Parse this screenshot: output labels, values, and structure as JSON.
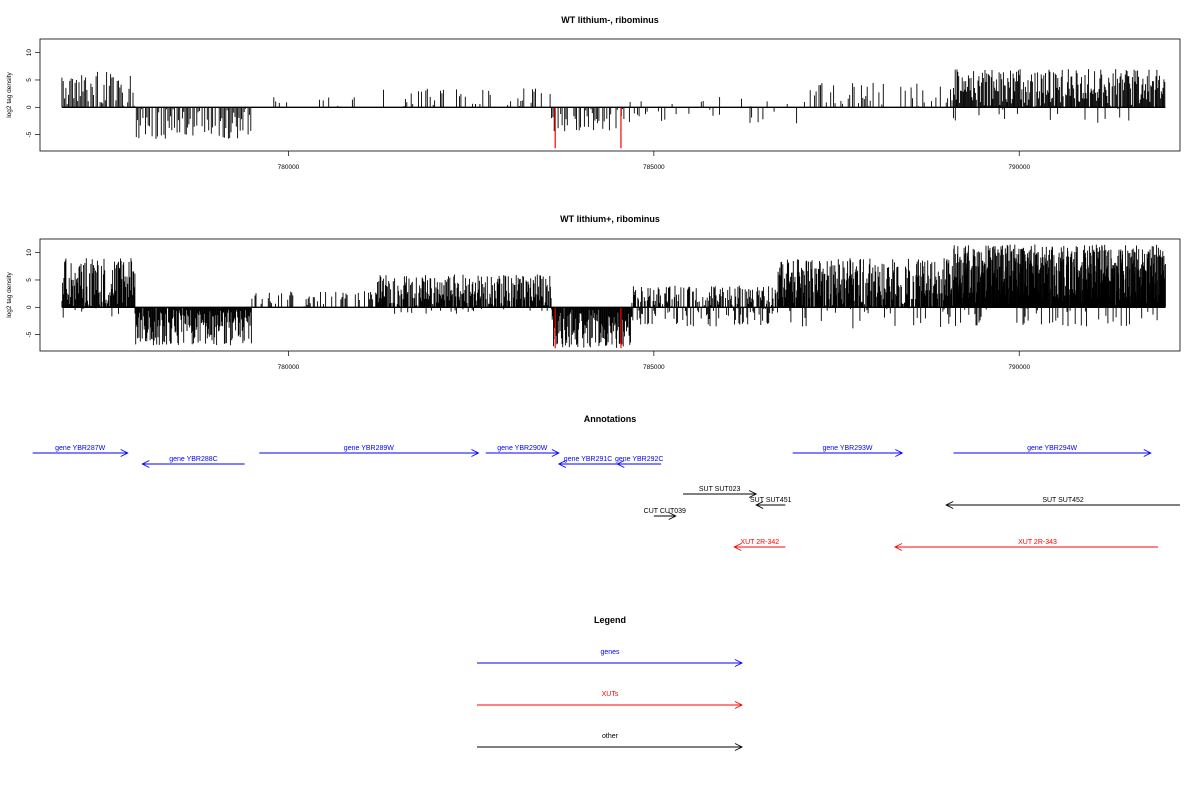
{
  "colors": {
    "black": "#000000",
    "blue": "#0000ff",
    "red": "#ff0000"
  },
  "chart_data": [
    {
      "type": "bar",
      "title": "WT lithium-, ribominus",
      "ylabel": "log2 tag density",
      "xlim": [
        776600,
        792200
      ],
      "ylim": [
        -8,
        12.5
      ],
      "xticks": [
        780000,
        785000,
        790000
      ],
      "yticks": [
        -5,
        0,
        5,
        10
      ],
      "grid": false,
      "tracks": [
        {
          "from": 776900,
          "to": 777900,
          "sign": 1,
          "density": 0.8,
          "max": 6.5,
          "step": 18
        },
        {
          "from": 777900,
          "to": 779500,
          "sign": -1,
          "density": 0.85,
          "max": 5.8,
          "step": 18
        },
        {
          "from": 779500,
          "to": 781300,
          "sign": 1,
          "density": 0.1,
          "max": 2.0,
          "step": 25
        },
        {
          "from": 781300,
          "to": 783600,
          "sign": 1,
          "density": 0.35,
          "max": 3.5,
          "step": 20
        },
        {
          "from": 783600,
          "to": 784600,
          "sign": -1,
          "density": 0.6,
          "max": 4.5,
          "step": 18
        },
        {
          "from": 784600,
          "to": 787000,
          "sign": -1,
          "density": 0.2,
          "max": 3.0,
          "step": 22
        },
        {
          "from": 784600,
          "to": 787000,
          "sign": 1,
          "density": 0.12,
          "max": 2.0,
          "step": 25
        },
        {
          "from": 787000,
          "to": 789100,
          "sign": 1,
          "density": 0.35,
          "max": 4.5,
          "step": 20
        },
        {
          "from": 789100,
          "to": 792000,
          "sign": 1,
          "density": 0.95,
          "max": 7.0,
          "step": 12
        },
        {
          "from": 789100,
          "to": 792000,
          "sign": -1,
          "density": 0.12,
          "max": 3.0,
          "step": 25
        }
      ],
      "red_marks": [
        {
          "x": 783650,
          "y": -7.5
        },
        {
          "x": 784550,
          "y": -7.5
        }
      ]
    },
    {
      "type": "bar",
      "title": "WT lithium+, ribominus",
      "ylabel": "log2 tag density",
      "xlim": [
        776600,
        792200
      ],
      "ylim": [
        -8,
        12.5
      ],
      "xticks": [
        780000,
        785000,
        790000
      ],
      "yticks": [
        -5,
        0,
        5,
        10
      ],
      "grid": false,
      "tracks": [
        {
          "from": 776900,
          "to": 777900,
          "sign": 1,
          "density": 1.0,
          "max": 9.0,
          "step": 9
        },
        {
          "from": 776900,
          "to": 777900,
          "sign": -1,
          "density": 0.15,
          "max": 2.0,
          "step": 18
        },
        {
          "from": 777900,
          "to": 779500,
          "sign": -1,
          "density": 0.95,
          "max": 7.0,
          "step": 9
        },
        {
          "from": 779500,
          "to": 781200,
          "sign": 1,
          "density": 0.35,
          "max": 3.0,
          "step": 14
        },
        {
          "from": 781200,
          "to": 783600,
          "sign": 1,
          "density": 0.85,
          "max": 6.0,
          "step": 9
        },
        {
          "from": 781200,
          "to": 783600,
          "sign": -1,
          "density": 0.12,
          "max": 1.5,
          "step": 18
        },
        {
          "from": 783600,
          "to": 784700,
          "sign": -1,
          "density": 1.0,
          "max": 7.5,
          "step": 9
        },
        {
          "from": 784700,
          "to": 786700,
          "sign": 1,
          "density": 0.6,
          "max": 4.0,
          "step": 10
        },
        {
          "from": 784700,
          "to": 786700,
          "sign": -1,
          "density": 0.4,
          "max": 3.5,
          "step": 12
        },
        {
          "from": 786700,
          "to": 789100,
          "sign": 1,
          "density": 0.9,
          "max": 9.0,
          "step": 8
        },
        {
          "from": 786700,
          "to": 789100,
          "sign": -1,
          "density": 0.2,
          "max": 4.0,
          "step": 16
        },
        {
          "from": 789100,
          "to": 792000,
          "sign": 1,
          "density": 1.0,
          "max": 11.5,
          "step": 5
        },
        {
          "from": 789100,
          "to": 792000,
          "sign": -1,
          "density": 0.25,
          "max": 3.5,
          "step": 14
        }
      ],
      "red_marks": [
        {
          "x": 783650,
          "y": -7.5
        },
        {
          "x": 784550,
          "y": -7.5
        }
      ]
    }
  ],
  "annotations": {
    "title": "Annotations",
    "features": [
      {
        "label": "gene YBR287W",
        "type": "gene",
        "start": 776500,
        "end": 777800,
        "strand": "+",
        "row": 0
      },
      {
        "label": "gene YBR288C",
        "type": "gene",
        "start": 778000,
        "end": 779400,
        "strand": "-",
        "row": 1
      },
      {
        "label": "gene YBR289W",
        "type": "gene",
        "start": 779600,
        "end": 782600,
        "strand": "+",
        "row": 0
      },
      {
        "label": "gene YBR290W",
        "type": "gene",
        "start": 782700,
        "end": 783700,
        "strand": "+",
        "row": 0
      },
      {
        "label": "gene YBR291C",
        "type": "gene",
        "start": 783700,
        "end": 784500,
        "strand": "-",
        "row": 1
      },
      {
        "label": "gene YBR292C",
        "type": "gene",
        "start": 784500,
        "end": 785100,
        "strand": "-",
        "row": 1
      },
      {
        "label": "gene YBR293W",
        "type": "gene",
        "start": 786900,
        "end": 788400,
        "strand": "+",
        "row": 0
      },
      {
        "label": "gene YBR294W",
        "type": "gene",
        "start": 789100,
        "end": 791800,
        "strand": "+",
        "row": 0
      },
      {
        "label": "SUT SUT023",
        "type": "other",
        "start": 785400,
        "end": 786400,
        "strand": "+",
        "row": 3
      },
      {
        "label": "SUT SUT451",
        "type": "other",
        "start": 786400,
        "end": 786800,
        "strand": "-",
        "row": 4
      },
      {
        "label": "SUT SUT452",
        "type": "other",
        "start": 789000,
        "end": 792200,
        "strand": "-",
        "row": 4
      },
      {
        "label": "CUT CUT039",
        "type": "other",
        "start": 785000,
        "end": 785300,
        "strand": "+",
        "row": 5
      },
      {
        "label": "XUT 2R-342",
        "type": "xut",
        "start": 786100,
        "end": 786800,
        "strand": "-",
        "row": 7
      },
      {
        "label": "XUT 2R-343",
        "type": "xut",
        "start": 788300,
        "end": 791900,
        "strand": "-",
        "row": 7
      }
    ]
  },
  "legend": {
    "title": "Legend",
    "items": [
      {
        "label": "genes",
        "color": "blue"
      },
      {
        "label": "XUTs",
        "color": "red"
      },
      {
        "label": "other",
        "color": "black"
      }
    ]
  }
}
